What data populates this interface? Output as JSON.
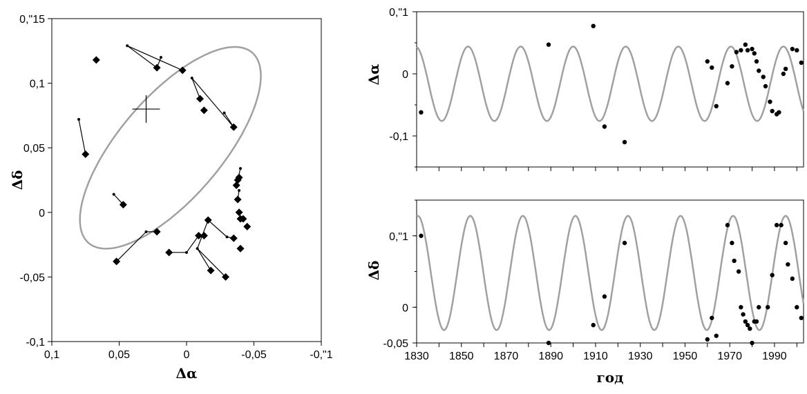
{
  "chart_data": [
    {
      "type": "scatter",
      "id": "orbit",
      "xlabel": "Δα",
      "ylabel": "Δδ",
      "xlim": [
        0.1,
        -0.1
      ],
      "ylim": [
        -0.1,
        0.15
      ],
      "x_ticks": [
        "0,1",
        "0,05",
        "0",
        "-0,05",
        "-0,\"1"
      ],
      "y_ticks": [
        "-0,1",
        "-0,05",
        "0",
        "0,05",
        "0,1",
        "0,\"15"
      ],
      "ellipse": {
        "center": [
          0.012,
          0.05
        ],
        "semi_major": 0.0955,
        "semi_minor": 0.0385,
        "angle_deg": -51
      },
      "center_mark": [
        0.03,
        0.08
      ],
      "observed_points": [
        [
          0.067,
          0.118
        ],
        [
          0.022,
          0.112
        ],
        [
          0.003,
          0.11
        ],
        [
          -0.01,
          0.088
        ],
        [
          -0.013,
          0.079
        ],
        [
          -0.035,
          0.066
        ],
        [
          0.075,
          0.045
        ],
        [
          -0.037,
          0.021
        ],
        [
          -0.038,
          0.025
        ],
        [
          -0.039,
          0.027
        ],
        [
          -0.038,
          0.01
        ],
        [
          -0.039,
          0.0
        ],
        [
          -0.04,
          -0.005
        ],
        [
          -0.042,
          -0.005
        ],
        [
          -0.045,
          -0.011
        ],
        [
          0.047,
          0.006
        ],
        [
          0.052,
          -0.038
        ],
        [
          0.022,
          -0.015
        ],
        [
          0.013,
          -0.031
        ],
        [
          -0.009,
          -0.018
        ],
        [
          -0.013,
          -0.018
        ],
        [
          -0.016,
          -0.006
        ],
        [
          -0.018,
          -0.045
        ],
        [
          -0.029,
          -0.05
        ],
        [
          -0.035,
          -0.02
        ],
        [
          -0.04,
          -0.028
        ]
      ],
      "computed_points": [
        [
          0.08,
          0.072
        ],
        [
          0.054,
          0.014
        ],
        [
          0.044,
          0.129
        ],
        [
          0.019,
          0.12
        ],
        [
          -0.004,
          0.104
        ],
        [
          -0.028,
          0.077
        ],
        [
          -0.04,
          0.034
        ],
        [
          -0.039,
          0.017
        ],
        [
          -0.03,
          -0.019
        ],
        [
          -0.008,
          -0.028
        ],
        [
          0.0,
          -0.031
        ],
        [
          0.03,
          -0.015
        ]
      ],
      "connections": [
        [
          [
            0.044,
            0.129
          ],
          [
            0.022,
            0.112
          ]
        ],
        [
          [
            0.044,
            0.129
          ],
          [
            0.003,
            0.11
          ]
        ],
        [
          [
            0.019,
            0.12
          ],
          [
            0.022,
            0.112
          ]
        ],
        [
          [
            -0.004,
            0.104
          ],
          [
            -0.01,
            0.088
          ]
        ],
        [
          [
            -0.004,
            0.104
          ],
          [
            -0.035,
            0.066
          ]
        ],
        [
          [
            -0.028,
            0.077
          ],
          [
            -0.035,
            0.066
          ]
        ],
        [
          [
            0.08,
            0.072
          ],
          [
            0.075,
            0.045
          ]
        ],
        [
          [
            -0.04,
            0.034
          ],
          [
            -0.037,
            0.021
          ]
        ],
        [
          [
            -0.039,
            0.017
          ],
          [
            -0.038,
            0.01
          ]
        ],
        [
          [
            0.054,
            0.014
          ],
          [
            0.047,
            0.006
          ]
        ],
        [
          [
            0.03,
            -0.015
          ],
          [
            0.052,
            -0.038
          ]
        ],
        [
          [
            0.03,
            -0.015
          ],
          [
            0.022,
            -0.015
          ]
        ],
        [
          [
            0.0,
            -0.031
          ],
          [
            0.013,
            -0.031
          ]
        ],
        [
          [
            0.0,
            -0.031
          ],
          [
            -0.009,
            -0.018
          ]
        ],
        [
          [
            -0.008,
            -0.028
          ],
          [
            -0.018,
            -0.045
          ]
        ],
        [
          [
            -0.008,
            -0.028
          ],
          [
            -0.016,
            -0.006
          ]
        ],
        [
          [
            -0.008,
            -0.028
          ],
          [
            -0.029,
            -0.05
          ]
        ],
        [
          [
            -0.03,
            -0.019
          ],
          [
            -0.035,
            -0.02
          ]
        ],
        [
          [
            -0.03,
            -0.019
          ],
          [
            -0.016,
            -0.006
          ]
        ]
      ]
    },
    {
      "type": "scatter",
      "id": "alpha-vs-year",
      "ylabel": "Δα",
      "xlim": [
        1830,
        2003
      ],
      "ylim": [
        -0.15,
        0.1
      ],
      "y_ticks": [
        "-0,1",
        "0",
        "0,\"1"
      ],
      "model": {
        "period": 23.5,
        "phase_year": 1853,
        "low": -0.076,
        "high": 0.044
      },
      "points": [
        [
          1832,
          -0.062
        ],
        [
          1889,
          0.047
        ],
        [
          1909,
          0.077
        ],
        [
          1914,
          -0.085
        ],
        [
          1923,
          -0.11
        ],
        [
          1960,
          0.02
        ],
        [
          1962,
          0.01
        ],
        [
          1964,
          -0.052
        ],
        [
          1969,
          -0.015
        ],
        [
          1971,
          0.012
        ],
        [
          1973,
          0.035
        ],
        [
          1975,
          0.038
        ],
        [
          1977,
          0.047
        ],
        [
          1978,
          0.038
        ],
        [
          1980,
          0.04
        ],
        [
          1981,
          0.033
        ],
        [
          1982,
          0.02
        ],
        [
          1983,
          0.005
        ],
        [
          1985,
          -0.005
        ],
        [
          1986,
          -0.02
        ],
        [
          1988,
          -0.045
        ],
        [
          1989,
          -0.06
        ],
        [
          1991,
          -0.065
        ],
        [
          1992,
          -0.062
        ],
        [
          1994,
          0.0
        ],
        [
          1995,
          0.008
        ],
        [
          1998,
          0.04
        ],
        [
          2000,
          0.038
        ],
        [
          2002,
          0.018
        ]
      ]
    },
    {
      "type": "scatter",
      "id": "delta-vs-year",
      "ylabel": "Δδ",
      "xlabel": "год",
      "xlim": [
        1830,
        2003
      ],
      "ylim": [
        -0.05,
        0.15
      ],
      "x_ticks": [
        "1830",
        "1850",
        "1870",
        "1890",
        "1910",
        "1930",
        "1950",
        "1970",
        "1990"
      ],
      "y_ticks": [
        "-0,05",
        "0",
        "0,\"1"
      ],
      "model": {
        "period": 23.5,
        "phase_year": 1854,
        "low": -0.032,
        "high": 0.128
      },
      "points": [
        [
          1832,
          0.1
        ],
        [
          1889,
          -0.05
        ],
        [
          1909,
          -0.025
        ],
        [
          1914,
          0.015
        ],
        [
          1923,
          0.09
        ],
        [
          1960,
          -0.045
        ],
        [
          1962,
          -0.015
        ],
        [
          1964,
          -0.04
        ],
        [
          1969,
          0.115
        ],
        [
          1971,
          0.09
        ],
        [
          1972,
          0.065
        ],
        [
          1974,
          0.05
        ],
        [
          1975,
          0.0
        ],
        [
          1976,
          -0.01
        ],
        [
          1977,
          -0.02
        ],
        [
          1978,
          -0.025
        ],
        [
          1979,
          -0.03
        ],
        [
          1980,
          -0.05
        ],
        [
          1981,
          -0.02
        ],
        [
          1982,
          -0.02
        ],
        [
          1983,
          0.0
        ],
        [
          1987,
          0.0
        ],
        [
          1989,
          0.045
        ],
        [
          1991,
          0.115
        ],
        [
          1993,
          0.115
        ],
        [
          1995,
          0.09
        ],
        [
          1996,
          0.06
        ],
        [
          1998,
          0.04
        ],
        [
          2000,
          0.0
        ],
        [
          2002,
          -0.015
        ]
      ]
    }
  ]
}
